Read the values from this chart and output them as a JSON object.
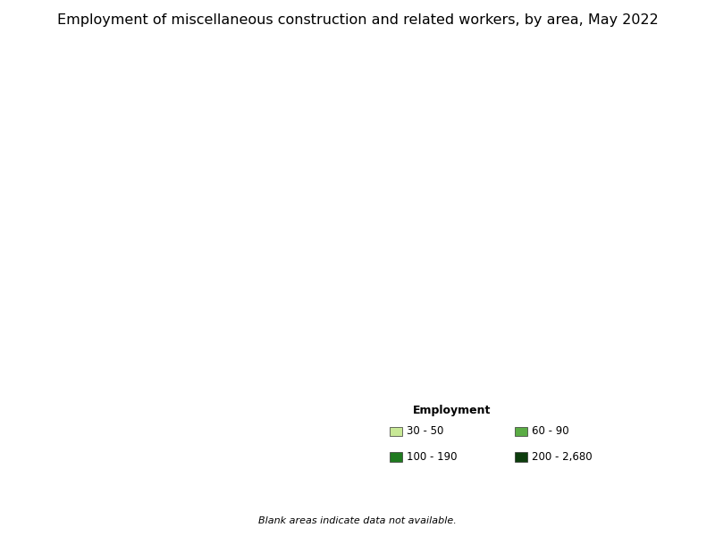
{
  "title": "Employment of miscellaneous construction and related workers, by area, May 2022",
  "legend_title": "Employment",
  "legend_entries": [
    {
      "label": "30 - 50",
      "color": "#c8e896"
    },
    {
      "label": "60 - 90",
      "color": "#5aac44"
    },
    {
      "label": "100 - 190",
      "color": "#1f7a1f"
    },
    {
      "label": "200 - 2,680",
      "color": "#0d3d0d"
    }
  ],
  "footnote": "Blank areas indicate data not available.",
  "background_color": "#ffffff",
  "no_data_color": "#ffffff",
  "border_color": "#888888",
  "state_border_color": "#333333",
  "title_fontsize": 11.5,
  "legend_title_fontsize": 9,
  "legend_fontsize": 8.5,
  "footnote_fontsize": 8
}
